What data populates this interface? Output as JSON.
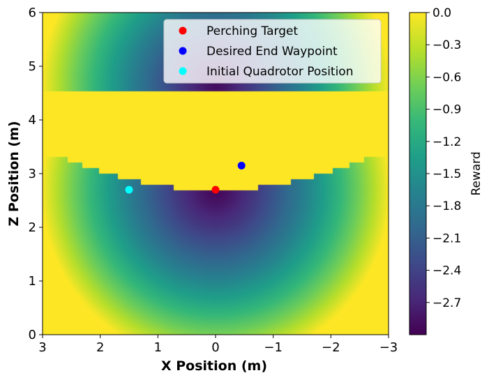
{
  "chart_data": {
    "type": "heatmap",
    "xlabel": "X Position (m)",
    "ylabel": "Z Position (m)",
    "xlim": [
      3,
      -3
    ],
    "ylim": [
      0,
      6
    ],
    "x_ticks": [
      "3",
      "2",
      "1",
      "0",
      "−1",
      "−2",
      "−3"
    ],
    "y_ticks": [
      "0",
      "1",
      "2",
      "3",
      "4",
      "5",
      "6"
    ],
    "colorbar": {
      "label": "Reward",
      "range": [
        -3.0,
        0.0
      ],
      "colormap": "viridis",
      "ticks": [
        "0.0",
        "−0.3",
        "−0.6",
        "−0.9",
        "−1.2",
        "−1.5",
        "−1.8",
        "−2.1",
        "−2.4",
        "−2.7"
      ],
      "tick_values": [
        0.0,
        -0.3,
        -0.6,
        -0.9,
        -1.2,
        -1.5,
        -1.8,
        -2.1,
        -2.4,
        -2.7
      ]
    },
    "points": [
      {
        "name": "Perching Target",
        "x": 0.0,
        "z": 2.7,
        "color": "#ff0000"
      },
      {
        "name": "Desired End Waypoint",
        "x": -0.45,
        "z": 3.15,
        "color": "#0000ff"
      },
      {
        "name": "Initial Quadrotor Position",
        "x": 1.5,
        "z": 2.7,
        "color": "#00ffff"
      }
    ],
    "legend_placement": "top-right",
    "grid": false
  }
}
